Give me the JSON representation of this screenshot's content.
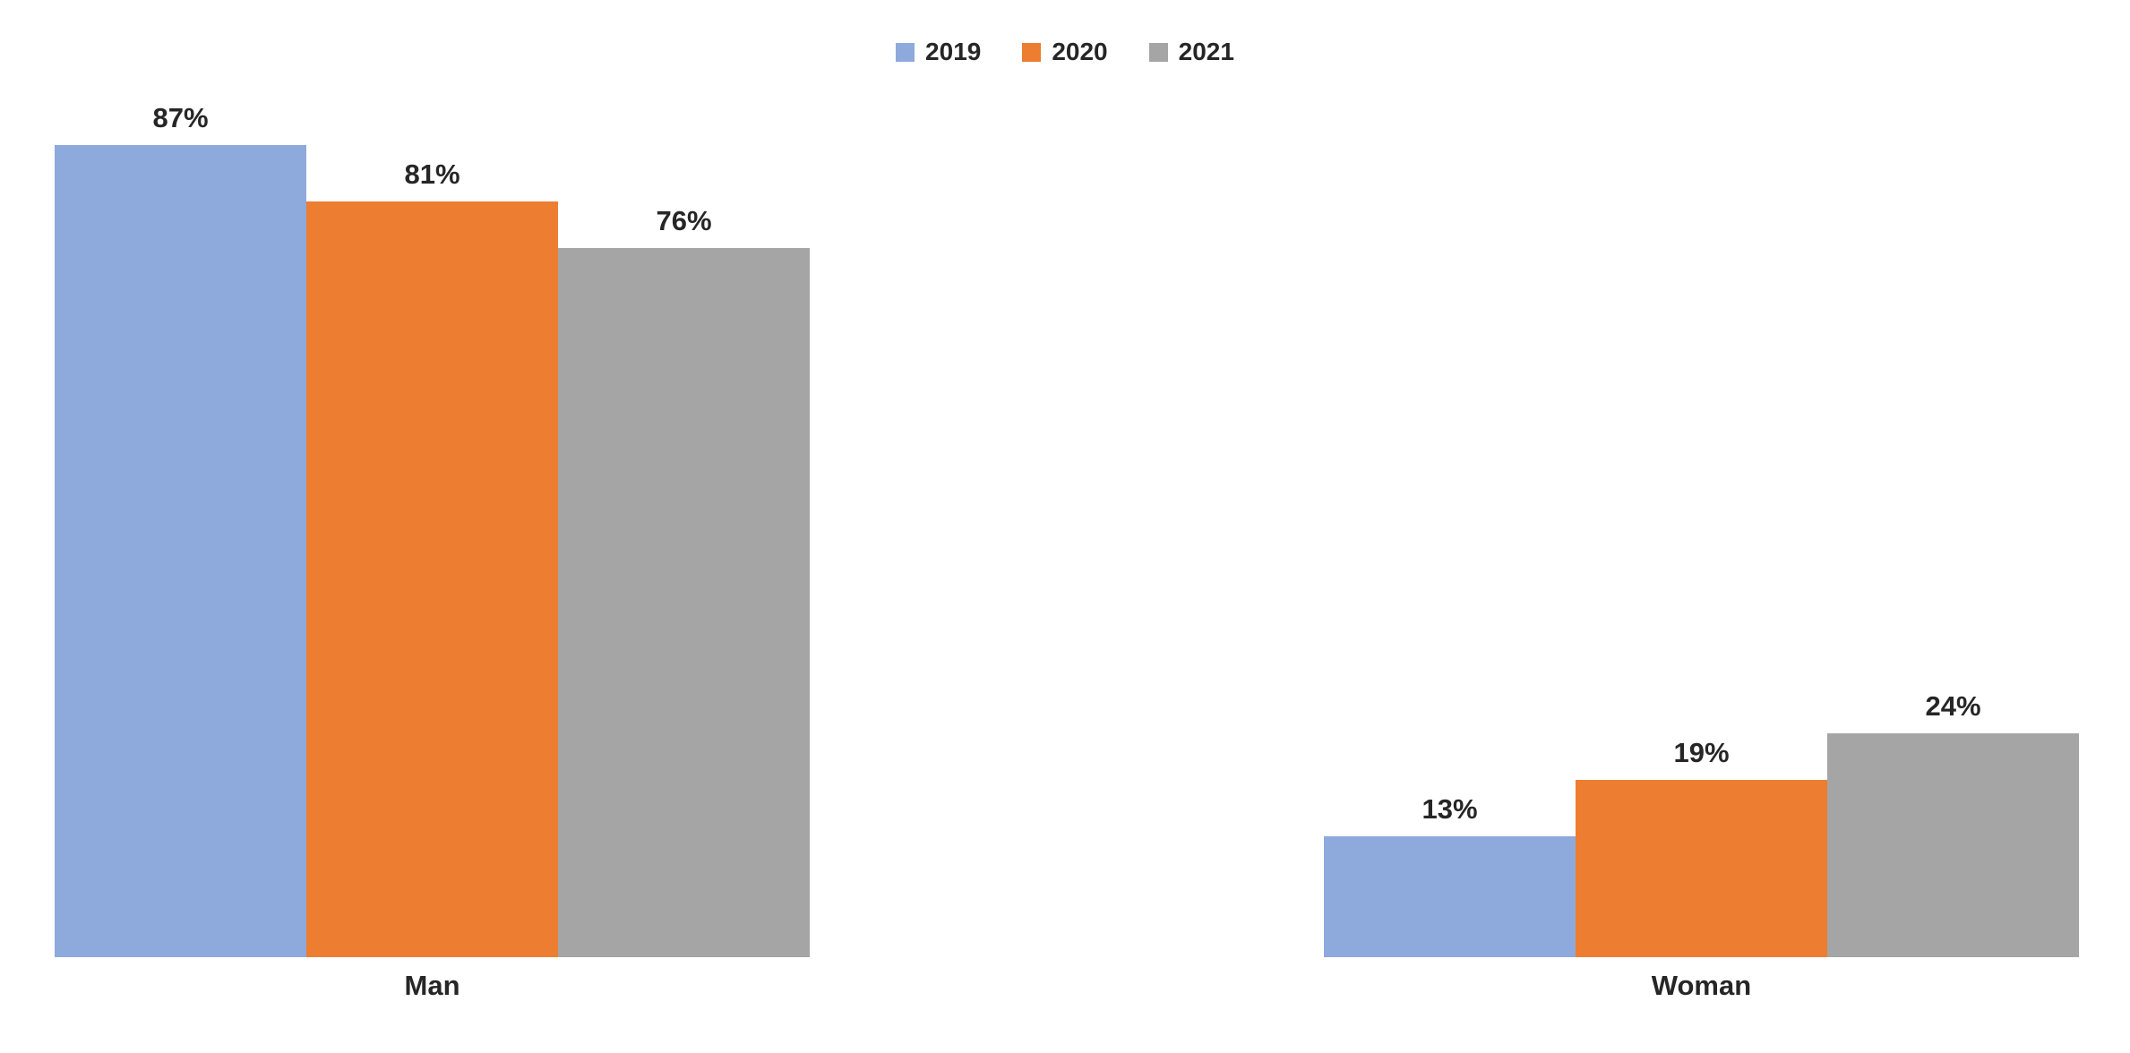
{
  "chart_data": {
    "type": "bar",
    "title": "",
    "categories": [
      "Man",
      "Woman"
    ],
    "series": [
      {
        "name": "2019",
        "color": "#8EA9DB",
        "values": [
          87,
          13
        ]
      },
      {
        "name": "2020",
        "color": "#ED7D31",
        "values": [
          81,
          19
        ]
      },
      {
        "name": "2021",
        "color": "#A5A5A5",
        "values": [
          76,
          24
        ]
      }
    ],
    "value_suffix": "%",
    "ylim": [
      0,
      100
    ],
    "legend_position": "top",
    "data_labels": true,
    "grid": false,
    "axes_visible": false
  },
  "colors": {
    "background": "#FFFFFF",
    "label_text": "#262626"
  }
}
